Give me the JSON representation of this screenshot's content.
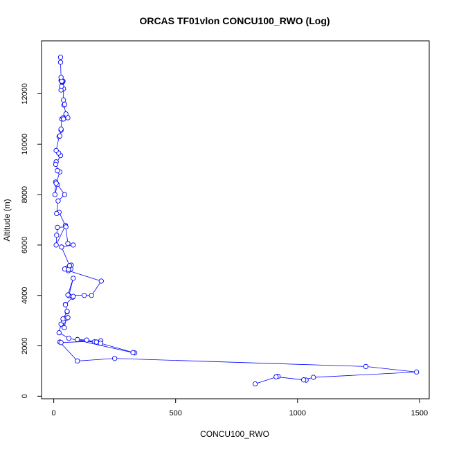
{
  "colors": {
    "series": "#0000ff",
    "axis": "#000000",
    "background": "#ffffff"
  },
  "chart_data": {
    "type": "scatter",
    "title": "ORCAS TF01vlon CONCU100_RWO (Log)",
    "xlabel": "CONCU100_RWO",
    "ylabel": "Altitude (m)",
    "xlim": [
      -50,
      1540
    ],
    "ylim": [
      -100,
      14100
    ],
    "xticks": [
      0,
      500,
      1000,
      1500
    ],
    "yticks": [
      0,
      2000,
      4000,
      6000,
      8000,
      10000,
      12000
    ],
    "grid": false,
    "markers": "open-circle",
    "connect_points": true,
    "series": [
      {
        "x": [
          826,
          920,
          912,
          1035,
          1025,
          1065,
          1488,
          1280,
          250,
          97,
          25,
          30,
          193,
          167,
          135,
          97,
          192,
          175,
          332,
          325,
          62,
          22,
          30,
          40,
          43,
          52,
          58,
          38,
          55,
          55,
          48,
          48,
          78,
          80,
          62,
          62,
          80,
          58,
          125,
          155,
          195,
          60,
          70,
          72,
          62,
          55,
          58,
          52,
          60,
          45,
          65,
          32,
          80,
          58,
          48,
          10,
          12,
          15,
          50,
          22,
          12,
          18,
          45,
          15,
          5,
          8,
          10,
          25,
          15,
          10,
          8,
          28,
          20,
          10,
          22,
          25,
          30,
          30,
          33,
          38,
          40,
          58,
          50,
          42,
          45,
          40,
          40,
          30,
          32,
          35,
          38,
          35,
          30,
          33,
          33,
          30,
          28,
          28
        ],
        "y": [
          490,
          790,
          770,
          640,
          650,
          750,
          960,
          1180,
          1500,
          1400,
          2150,
          2130,
          2200,
          2160,
          2230,
          2250,
          2100,
          2150,
          1720,
          1730,
          2300,
          2520,
          2860,
          2980,
          2720,
          3100,
          3120,
          3070,
          3350,
          3370,
          3640,
          3630,
          3930,
          3960,
          4000,
          3990,
          4680,
          4020,
          4000,
          4000,
          4570,
          4980,
          5050,
          5200,
          5120,
          5080,
          5040,
          5080,
          5030,
          5050,
          5180,
          5920,
          6000,
          6060,
          6780,
          6000,
          6390,
          6700,
          6720,
          7300,
          7250,
          7750,
          8000,
          8400,
          8000,
          8500,
          8450,
          8900,
          8950,
          9300,
          9200,
          9550,
          9650,
          9750,
          10300,
          10330,
          10550,
          10600,
          11000,
          11050,
          11000,
          11050,
          11200,
          11550,
          11580,
          11750,
          12200,
          12150,
          12300,
          12450,
          12500,
          12480,
          12530,
          12520,
          12500,
          12650,
          13250,
          13450
        ]
      }
    ]
  }
}
